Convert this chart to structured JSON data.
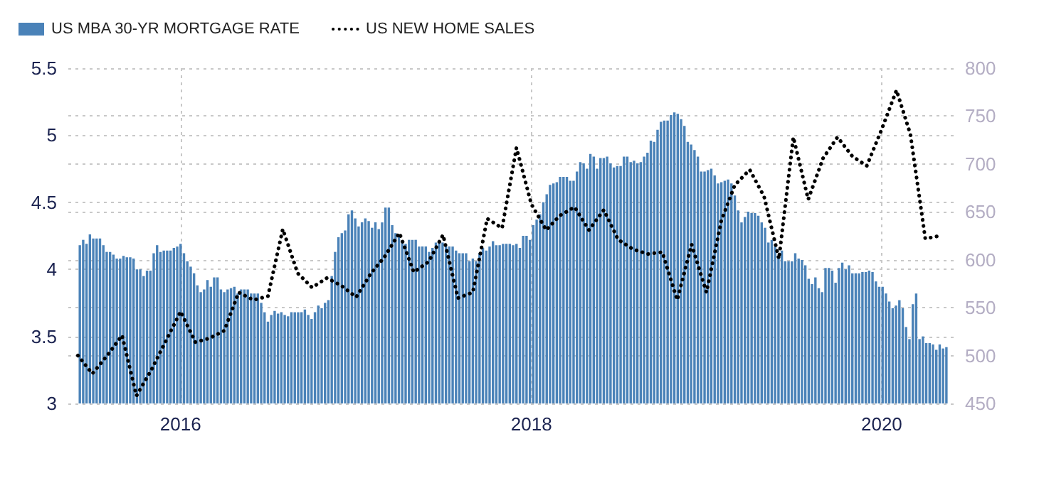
{
  "chart_data": {
    "type": "bar",
    "xlim": [
      "2015-05-12",
      "2020-05-30"
    ],
    "xticks": [
      "2016",
      "2018",
      "2020"
    ],
    "ylim": [
      3,
      5.5
    ],
    "yticks": [
      3,
      3.5,
      4,
      4.5,
      5,
      5.5
    ],
    "y2lim": [
      450,
      800
    ],
    "y2ticks": [
      450,
      500,
      550,
      600,
      650,
      700,
      750,
      800
    ],
    "grid": true,
    "legend": "top left",
    "series": [
      {
        "name": "US MBA 30-YR MORTGAGE RATE",
        "color": "#4a82b8",
        "x": [
          "2015-06-05",
          "2015-06-12",
          "2015-06-19",
          "2015-06-26",
          "2015-07-03",
          "2015-07-10",
          "2015-07-17",
          "2015-07-24",
          "2015-07-31",
          "2015-08-07",
          "2015-08-14",
          "2015-08-21",
          "2015-08-28",
          "2015-09-04",
          "2015-09-11",
          "2015-09-18",
          "2015-09-25",
          "2015-10-02",
          "2015-10-09",
          "2015-10-16",
          "2015-10-23",
          "2015-10-30",
          "2015-11-06",
          "2015-11-13",
          "2015-11-20",
          "2015-11-27",
          "2015-12-04",
          "2015-12-11",
          "2015-12-18",
          "2015-12-25",
          "2016-01-01",
          "2016-01-08",
          "2016-01-15",
          "2016-01-22",
          "2016-01-29",
          "2016-02-05",
          "2016-02-12",
          "2016-02-19",
          "2016-02-26",
          "2016-03-04",
          "2016-03-11",
          "2016-03-18",
          "2016-03-25",
          "2016-04-01",
          "2016-04-08",
          "2016-04-15",
          "2016-04-22",
          "2016-04-29",
          "2016-05-06",
          "2016-05-13",
          "2016-05-20",
          "2016-05-27",
          "2016-06-03",
          "2016-06-10",
          "2016-06-17",
          "2016-06-24",
          "2016-07-01",
          "2016-07-08",
          "2016-07-15",
          "2016-07-22",
          "2016-07-29",
          "2016-08-05",
          "2016-08-12",
          "2016-08-19",
          "2016-08-26",
          "2016-09-02",
          "2016-09-09",
          "2016-09-16",
          "2016-09-23",
          "2016-09-30",
          "2016-10-07",
          "2016-10-14",
          "2016-10-21",
          "2016-10-28",
          "2016-11-04",
          "2016-11-11",
          "2016-11-18",
          "2016-11-25",
          "2016-12-02",
          "2016-12-09",
          "2016-12-16",
          "2016-12-23",
          "2016-12-30",
          "2017-01-06",
          "2017-01-13",
          "2017-01-20",
          "2017-01-27",
          "2017-02-03",
          "2017-02-10",
          "2017-02-17",
          "2017-02-24",
          "2017-03-03",
          "2017-03-10",
          "2017-03-17",
          "2017-03-24",
          "2017-03-31",
          "2017-04-07",
          "2017-04-14",
          "2017-04-21",
          "2017-04-28",
          "2017-05-05",
          "2017-05-12",
          "2017-05-19",
          "2017-05-26",
          "2017-06-02",
          "2017-06-09",
          "2017-06-16",
          "2017-06-23",
          "2017-06-30",
          "2017-07-07",
          "2017-07-14",
          "2017-07-21",
          "2017-07-28",
          "2017-08-04",
          "2017-08-11",
          "2017-08-18",
          "2017-08-25",
          "2017-09-01",
          "2017-09-08",
          "2017-09-15",
          "2017-09-22",
          "2017-09-29",
          "2017-10-06",
          "2017-10-13",
          "2017-10-20",
          "2017-10-27",
          "2017-11-03",
          "2017-11-10",
          "2017-11-17",
          "2017-11-24",
          "2017-12-01",
          "2017-12-08",
          "2017-12-15",
          "2017-12-22",
          "2017-12-29",
          "2018-01-05",
          "2018-01-12",
          "2018-01-19",
          "2018-01-26",
          "2018-02-02",
          "2018-02-09",
          "2018-02-16",
          "2018-02-23",
          "2018-03-02",
          "2018-03-09",
          "2018-03-16",
          "2018-03-23",
          "2018-03-30",
          "2018-04-06",
          "2018-04-13",
          "2018-04-20",
          "2018-04-27",
          "2018-05-04",
          "2018-05-11",
          "2018-05-18",
          "2018-05-25",
          "2018-06-01",
          "2018-06-08",
          "2018-06-15",
          "2018-06-22",
          "2018-06-29",
          "2018-07-06",
          "2018-07-13",
          "2018-07-20",
          "2018-07-27",
          "2018-08-03",
          "2018-08-10",
          "2018-08-17",
          "2018-08-24",
          "2018-08-31",
          "2018-09-07",
          "2018-09-14",
          "2018-09-21",
          "2018-09-28",
          "2018-10-05",
          "2018-10-12",
          "2018-10-19",
          "2018-10-26",
          "2018-11-02",
          "2018-11-09",
          "2018-11-16",
          "2018-11-23",
          "2018-11-30",
          "2018-12-07",
          "2018-12-14",
          "2018-12-21",
          "2018-12-28",
          "2019-01-04",
          "2019-01-11",
          "2019-01-18",
          "2019-01-25",
          "2019-02-01",
          "2019-02-08",
          "2019-02-15",
          "2019-02-22",
          "2019-03-01",
          "2019-03-08",
          "2019-03-15",
          "2019-03-22",
          "2019-03-29",
          "2019-04-05",
          "2019-04-12",
          "2019-04-19",
          "2019-04-26",
          "2019-05-03",
          "2019-05-10",
          "2019-05-17",
          "2019-05-24",
          "2019-05-31",
          "2019-06-07",
          "2019-06-14",
          "2019-06-21",
          "2019-06-28",
          "2019-07-05",
          "2019-07-12",
          "2019-07-19",
          "2019-07-26",
          "2019-08-02",
          "2019-08-09",
          "2019-08-16",
          "2019-08-23",
          "2019-08-30",
          "2019-09-06",
          "2019-09-13",
          "2019-09-20",
          "2019-09-27",
          "2019-10-04",
          "2019-10-11",
          "2019-10-18",
          "2019-10-25",
          "2019-11-01",
          "2019-11-08",
          "2019-11-15",
          "2019-11-22",
          "2019-11-29",
          "2019-12-06",
          "2019-12-13",
          "2019-12-20",
          "2019-12-27",
          "2020-01-03",
          "2020-01-10",
          "2020-01-17",
          "2020-01-24",
          "2020-01-31",
          "2020-02-07",
          "2020-02-14",
          "2020-02-21",
          "2020-02-28",
          "2020-03-06",
          "2020-03-13",
          "2020-03-20",
          "2020-03-27",
          "2020-04-03",
          "2020-04-10",
          "2020-04-17",
          "2020-04-24",
          "2020-05-01",
          "2020-05-08",
          "2020-05-15"
        ],
        "values": [
          4.18,
          4.22,
          4.19,
          4.26,
          4.23,
          4.23,
          4.23,
          4.18,
          4.13,
          4.13,
          4.11,
          4.08,
          4.08,
          4.1,
          4.09,
          4.09,
          4.08,
          4.0,
          4.0,
          3.95,
          3.99,
          3.99,
          4.12,
          4.18,
          4.13,
          4.14,
          4.14,
          4.14,
          4.16,
          4.17,
          4.19,
          4.12,
          4.06,
          4.02,
          3.97,
          3.88,
          3.83,
          3.85,
          3.92,
          3.87,
          3.94,
          3.94,
          3.85,
          3.83,
          3.85,
          3.86,
          3.87,
          3.82,
          3.85,
          3.85,
          3.85,
          3.82,
          3.82,
          3.82,
          3.75,
          3.68,
          3.61,
          3.66,
          3.69,
          3.67,
          3.68,
          3.66,
          3.65,
          3.68,
          3.68,
          3.68,
          3.68,
          3.7,
          3.66,
          3.63,
          3.68,
          3.73,
          3.71,
          3.75,
          3.77,
          3.95,
          4.13,
          4.24,
          4.27,
          4.29,
          4.41,
          4.44,
          4.38,
          4.32,
          4.35,
          4.38,
          4.36,
          4.31,
          4.35,
          4.3,
          4.35,
          4.46,
          4.46,
          4.33,
          4.27,
          4.25,
          4.21,
          4.19,
          4.22,
          4.22,
          4.22,
          4.17,
          4.17,
          4.17,
          4.13,
          4.16,
          4.2,
          4.21,
          4.2,
          4.17,
          4.17,
          4.17,
          4.14,
          4.12,
          4.12,
          4.12,
          4.06,
          4.08,
          4.06,
          4.12,
          4.16,
          4.14,
          4.17,
          4.21,
          4.18,
          4.18,
          4.19,
          4.19,
          4.19,
          4.18,
          4.19,
          4.16,
          4.25,
          4.25,
          4.22,
          4.33,
          4.37,
          4.41,
          4.5,
          4.56,
          4.63,
          4.64,
          4.65,
          4.69,
          4.69,
          4.69,
          4.66,
          4.66,
          4.73,
          4.8,
          4.79,
          4.75,
          4.86,
          4.84,
          4.75,
          4.83,
          4.83,
          4.84,
          4.79,
          4.76,
          4.77,
          4.77,
          4.84,
          4.84,
          4.8,
          4.81,
          4.79,
          4.8,
          4.84,
          4.87,
          4.96,
          4.95,
          5.04,
          5.1,
          5.11,
          5.11,
          5.15,
          5.17,
          5.16,
          5.12,
          5.07,
          4.95,
          4.93,
          4.89,
          4.84,
          4.73,
          4.73,
          4.74,
          4.75,
          4.7,
          4.64,
          4.65,
          4.66,
          4.67,
          4.64,
          4.55,
          4.44,
          4.35,
          4.39,
          4.43,
          4.42,
          4.42,
          4.4,
          4.35,
          4.31,
          4.2,
          4.22,
          4.17,
          4.1,
          4.14,
          4.06,
          4.06,
          4.06,
          4.12,
          4.08,
          4.07,
          4.03,
          3.93,
          3.89,
          3.94,
          3.86,
          3.83,
          4.01,
          4.01,
          3.99,
          3.9,
          4.01,
          4.05,
          4.0,
          4.03,
          3.97,
          3.97,
          3.97,
          3.98,
          3.98,
          3.99,
          3.98,
          3.91,
          3.87,
          3.87,
          3.82,
          3.76,
          3.71,
          3.73,
          3.77,
          3.71,
          3.57,
          3.48,
          3.74,
          3.82,
          3.48,
          3.5,
          3.45,
          3.45,
          3.44,
          3.4,
          3.44,
          3.41,
          3.42
        ]
      },
      {
        "name": "US NEW HOME SALES",
        "type": "line",
        "axis": "y2",
        "color": "#000000",
        "line_style": "dotted",
        "marker": "none",
        "x": [
          "2015-06",
          "2015-07",
          "2015-08",
          "2015-09",
          "2015-10",
          "2015-11",
          "2015-12",
          "2016-01",
          "2016-02",
          "2016-03",
          "2016-04",
          "2016-05",
          "2016-06",
          "2016-07",
          "2016-08",
          "2016-09",
          "2016-10",
          "2016-11",
          "2016-12",
          "2017-01",
          "2017-02",
          "2017-03",
          "2017-04",
          "2017-05",
          "2017-06",
          "2017-07",
          "2017-08",
          "2017-09",
          "2017-10",
          "2017-11",
          "2017-12",
          "2018-01",
          "2018-02",
          "2018-03",
          "2018-04",
          "2018-05",
          "2018-06",
          "2018-07",
          "2018-08",
          "2018-09",
          "2018-10",
          "2018-11",
          "2018-12",
          "2019-01",
          "2019-02",
          "2019-03",
          "2019-04",
          "2019-05",
          "2019-06",
          "2019-07",
          "2019-08",
          "2019-09",
          "2019-10",
          "2019-11",
          "2019-12",
          "2020-01",
          "2020-02",
          "2020-03",
          "2020-04",
          "2020-05"
        ],
        "values": [
          500,
          481,
          500,
          521,
          458,
          485,
          515,
          546,
          514,
          518,
          526,
          566,
          558,
          562,
          632,
          586,
          571,
          581,
          573,
          561,
          586,
          603,
          628,
          587,
          598,
          626,
          560,
          566,
          643,
          633,
          717,
          658,
          631,
          646,
          655,
          631,
          652,
          621,
          611,
          606,
          608,
          558,
          616,
          566,
          641,
          678,
          694,
          666,
          601,
          728,
          663,
          706,
          728,
          708,
          698,
          736,
          777,
          731,
          622,
          625
        ]
      }
    ]
  }
}
